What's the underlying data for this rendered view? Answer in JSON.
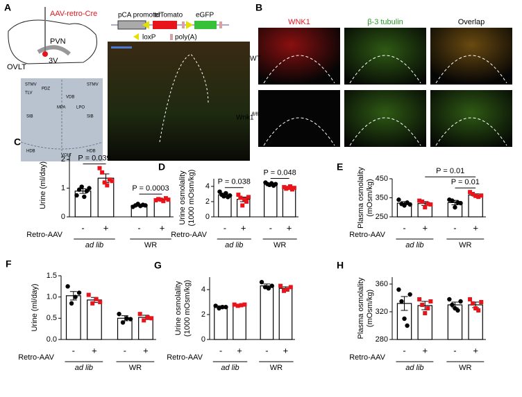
{
  "panel_a": {
    "letter": "A",
    "virus": "AAV-retro-Cre",
    "regions": [
      "PVN",
      "OVLT",
      "3V"
    ],
    "construct": [
      "pCA promoter",
      "tdTomato",
      "eGFP",
      "loxP",
      "poly(A)"
    ],
    "atlas": [
      "STMV",
      "TLV",
      "PDZ",
      "VDB",
      "MPA",
      "LPO",
      "SIB",
      "HDB",
      "VOLT",
      "STMV",
      "SIB",
      "HDB"
    ]
  },
  "panel_b": {
    "letter": "B",
    "columns": [
      "WNK1",
      "β-3 tubulin",
      "Overlap"
    ],
    "rows": [
      "WT",
      "Wnk1"
    ],
    "row_superscript": "fl/fl"
  },
  "chart_data": [
    {
      "type": "bar",
      "panel": "C",
      "ylabel": [
        "Urine (ml/day)"
      ],
      "row_label": "Retro-AAV",
      "categories": [
        "-",
        "+",
        "-",
        "+"
      ],
      "groups": [
        "ad lib",
        "WR"
      ],
      "colors": [
        "#000000",
        "#e8141b",
        "#000000",
        "#e8141b"
      ],
      "values": [
        0.9,
        1.35,
        0.4,
        0.6
      ],
      "errors": [
        0.08,
        0.15,
        0.03,
        0.03
      ],
      "points": [
        [
          0.75,
          0.95,
          1.05,
          0.7,
          0.9,
          1.0
        ],
        [
          1.7,
          1.55,
          1.2,
          1.1,
          1.3,
          1.25
        ],
        [
          0.35,
          0.4,
          0.45,
          0.38,
          0.42,
          0.4
        ],
        [
          0.58,
          0.62,
          0.6,
          0.55,
          0.65,
          0.6
        ]
      ],
      "ylim": [
        0,
        2.2
      ],
      "yticks": [
        0,
        1,
        2
      ],
      "annotations": [
        {
          "text": "P = 0.039",
          "bars": [
            0,
            1
          ]
        },
        {
          "text": "P = 0.0003",
          "bars": [
            2,
            3
          ]
        }
      ]
    },
    {
      "type": "bar",
      "panel": "D",
      "ylabel": [
        "Urine osmolality",
        "(1000 mOsm/kg)"
      ],
      "row_label": "Retro-AAV",
      "categories": [
        "-",
        "+",
        "-",
        "+"
      ],
      "groups": [
        "ad lib",
        "WR"
      ],
      "colors": [
        "#000000",
        "#e8141b",
        "#000000",
        "#e8141b"
      ],
      "values": [
        2.9,
        2.3,
        4.3,
        3.8
      ],
      "errors": [
        0.2,
        0.3,
        0.1,
        0.1
      ],
      "points": [
        [
          3.3,
          2.9,
          2.7,
          3.1,
          2.6,
          2.8
        ],
        [
          2.9,
          2.5,
          1.5,
          2.3,
          2.0,
          2.6
        ],
        [
          4.5,
          4.3,
          4.2,
          4.4,
          4.1,
          4.3
        ],
        [
          3.9,
          3.7,
          3.8,
          4.0,
          3.6,
          3.8
        ]
      ],
      "ylim": [
        0,
        5
      ],
      "yticks": [
        0,
        2,
        4
      ],
      "annotations": [
        {
          "text": "P = 0.038",
          "bars": [
            0,
            1
          ]
        },
        {
          "text": "P = 0.048",
          "bars": [
            2,
            3
          ]
        }
      ]
    },
    {
      "type": "bar",
      "panel": "E",
      "ylabel": [
        "Plasma osmolality",
        "(mOsm/kg)"
      ],
      "row_label": "Retro-AAV",
      "categories": [
        "-",
        "+",
        "-",
        "+"
      ],
      "groups": [
        "ad lib",
        "WR"
      ],
      "colors": [
        "#000000",
        "#e8141b",
        "#000000",
        "#e8141b"
      ],
      "values": [
        322,
        320,
        325,
        365
      ],
      "errors": [
        8,
        10,
        12,
        6
      ],
      "points": [
        [
          340,
          318,
          310,
          325,
          315
        ],
        [
          335,
          330,
          300,
          318,
          315
        ],
        [
          340,
          335,
          300,
          325,
          322
        ],
        [
          380,
          370,
          360,
          355,
          362
        ]
      ],
      "ylim": [
        250,
        450
      ],
      "yticks": [
        250,
        350,
        450
      ],
      "annotations": [
        {
          "text": "P = 0.01",
          "bars": [
            1,
            3
          ]
        },
        {
          "text": "P = 0.01",
          "bars": [
            2,
            3
          ]
        }
      ]
    },
    {
      "type": "bar",
      "panel": "F",
      "ylabel": [
        "Urine (ml/day)"
      ],
      "row_label": "Retro-AAV",
      "categories": [
        "-",
        "+",
        "-",
        "+"
      ],
      "groups": [
        "ad lib",
        "WR"
      ],
      "colors": [
        "#000000",
        "#e8141b",
        "#000000",
        "#e8141b"
      ],
      "values": [
        1.03,
        0.93,
        0.5,
        0.52
      ],
      "errors": [
        0.1,
        0.06,
        0.06,
        0.05
      ],
      "points": [
        [
          1.25,
          0.85,
          1.0,
          1.1
        ],
        [
          1.05,
          0.85,
          0.95,
          0.88
        ],
        [
          0.6,
          0.4,
          0.5,
          0.48
        ],
        [
          0.6,
          0.45,
          0.52,
          0.5
        ]
      ],
      "ylim": [
        0,
        1.5
      ],
      "yticks": [
        {
          "value": 0,
          "label": "0.0"
        },
        0.5,
        {
          "value": 1,
          "label": "1.0"
        },
        1.5
      ],
      "annotations": []
    },
    {
      "type": "bar",
      "panel": "G",
      "ylabel": [
        "Urine osmolality",
        "(1000 mOsm/kg)"
      ],
      "row_label": "Retro-AAV",
      "categories": [
        "-",
        "+",
        "-",
        "+"
      ],
      "groups": [
        "ad lib",
        "WR"
      ],
      "colors": [
        "#000000",
        "#e8141b",
        "#000000",
        "#e8141b"
      ],
      "values": [
        2.6,
        2.75,
        4.3,
        4.1
      ],
      "errors": [
        0.1,
        0.05,
        0.15,
        0.12
      ],
      "points": [
        [
          2.7,
          2.5,
          2.6,
          2.6
        ],
        [
          2.8,
          2.7,
          2.75,
          2.8
        ],
        [
          4.6,
          4.2,
          4.1,
          4.3
        ],
        [
          4.3,
          3.9,
          4.0,
          4.2
        ]
      ],
      "ylim": [
        0,
        5
      ],
      "yticks": [
        0,
        2,
        4
      ],
      "annotations": []
    },
    {
      "type": "bar",
      "panel": "H",
      "ylabel": [
        "Plasma osmolality",
        "(mOsm/kg)"
      ],
      "row_label": "Retro-AAV",
      "categories": [
        "-",
        "+",
        "-",
        "+"
      ],
      "groups": [
        "ad lib",
        "WR"
      ],
      "colors": [
        "#000000",
        "#e8141b",
        "#000000",
        "#e8141b"
      ],
      "values": [
        332,
        329,
        330,
        330
      ],
      "errors": [
        10,
        6,
        4,
        4
      ],
      "points": [
        [
          352,
          335,
          310,
          300,
          345
        ],
        [
          338,
          330,
          318,
          325,
          335
        ],
        [
          338,
          330,
          325,
          322,
          335
        ],
        [
          338,
          332,
          325,
          322,
          334
        ]
      ],
      "ylim": [
        280,
        370
      ],
      "yticks": [
        280,
        320,
        360
      ],
      "annotations": []
    }
  ]
}
